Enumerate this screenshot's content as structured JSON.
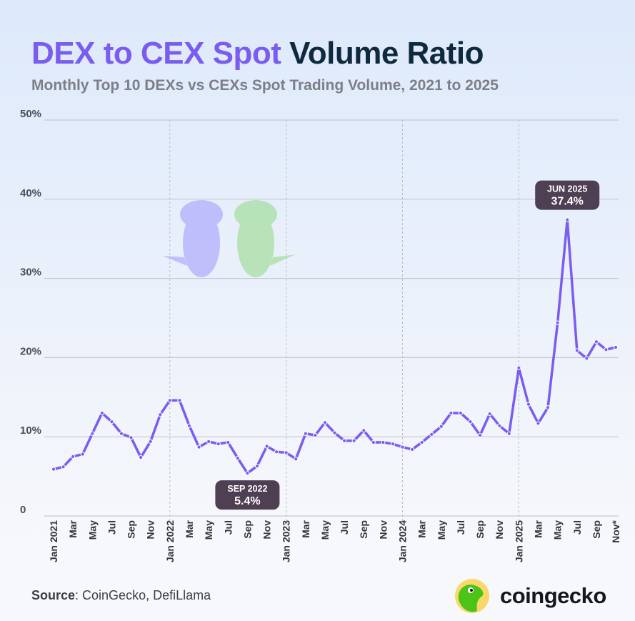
{
  "title_part1": "DEX to CEX Spot",
  "title_part2": "Volume Ratio",
  "subtitle": "Monthly Top 10 DEXs vs CEXs Spot Trading Volume, 2021 to 2025",
  "source_label": "Source",
  "source_text": ": CoinGecko, DefiLlama",
  "brand": "coingecko",
  "colors": {
    "line": "#7b5cf0",
    "title_accent": "#7a5cf0",
    "title_dark": "#0f2a3f",
    "annotation_bg": "#4e3f52"
  },
  "chart_data": {
    "type": "line",
    "title": "DEX to CEX Spot Volume Ratio",
    "ylim": [
      0,
      50
    ],
    "y_ticks": [
      "0",
      "10%",
      "20%",
      "30%",
      "40%",
      "50%"
    ],
    "grid": true,
    "x_tick_labels": [
      "Jan 2021",
      "Mar",
      "May",
      "Jul",
      "Sep",
      "Nov",
      "Jan 2022",
      "Mar",
      "May",
      "Jul",
      "Sep",
      "Nov",
      "Jan 2023",
      "Mar",
      "May",
      "Jul",
      "Sep",
      "Nov",
      "Jan 2024",
      "Mar",
      "May",
      "Jul",
      "Sep",
      "Nov",
      "Jan 2025",
      "Mar",
      "May",
      "Jul",
      "Sep",
      "Nov*"
    ],
    "x": [
      "2021-01",
      "2021-02",
      "2021-03",
      "2021-04",
      "2021-05",
      "2021-06",
      "2021-07",
      "2021-08",
      "2021-09",
      "2021-10",
      "2021-11",
      "2021-12",
      "2022-01",
      "2022-02",
      "2022-03",
      "2022-04",
      "2022-05",
      "2022-06",
      "2022-07",
      "2022-08",
      "2022-09",
      "2022-10",
      "2022-11",
      "2022-12",
      "2023-01",
      "2023-02",
      "2023-03",
      "2023-04",
      "2023-05",
      "2023-06",
      "2023-07",
      "2023-08",
      "2023-09",
      "2023-10",
      "2023-11",
      "2023-12",
      "2024-01",
      "2024-02",
      "2024-03",
      "2024-04",
      "2024-05",
      "2024-06",
      "2024-07",
      "2024-08",
      "2024-09",
      "2024-10",
      "2024-11",
      "2024-12",
      "2025-01",
      "2025-02",
      "2025-03",
      "2025-04",
      "2025-05",
      "2025-06",
      "2025-07",
      "2025-08",
      "2025-09",
      "2025-10",
      "2025-11"
    ],
    "values": [
      5.9,
      6.2,
      7.5,
      7.8,
      10.4,
      13.0,
      11.9,
      10.4,
      9.9,
      7.4,
      9.4,
      12.8,
      14.6,
      14.6,
      11.4,
      8.7,
      9.4,
      9.1,
      9.3,
      7.3,
      5.4,
      6.3,
      8.8,
      8.1,
      8.0,
      7.2,
      10.4,
      10.2,
      11.8,
      10.5,
      9.5,
      9.5,
      10.8,
      9.3,
      9.3,
      9.1,
      8.7,
      8.4,
      9.3,
      10.3,
      11.3,
      13.0,
      13.0,
      11.9,
      10.2,
      12.9,
      11.4,
      10.4,
      18.7,
      14.1,
      11.7,
      13.7,
      24.4,
      37.4,
      20.9,
      19.9,
      22.0,
      21.0,
      21.3
    ],
    "annotations": [
      {
        "x": "2022-09",
        "label": "SEP 2022",
        "value": "5.4%"
      },
      {
        "x": "2025-06",
        "label": "JUN 2025",
        "value": "37.4%"
      }
    ]
  }
}
